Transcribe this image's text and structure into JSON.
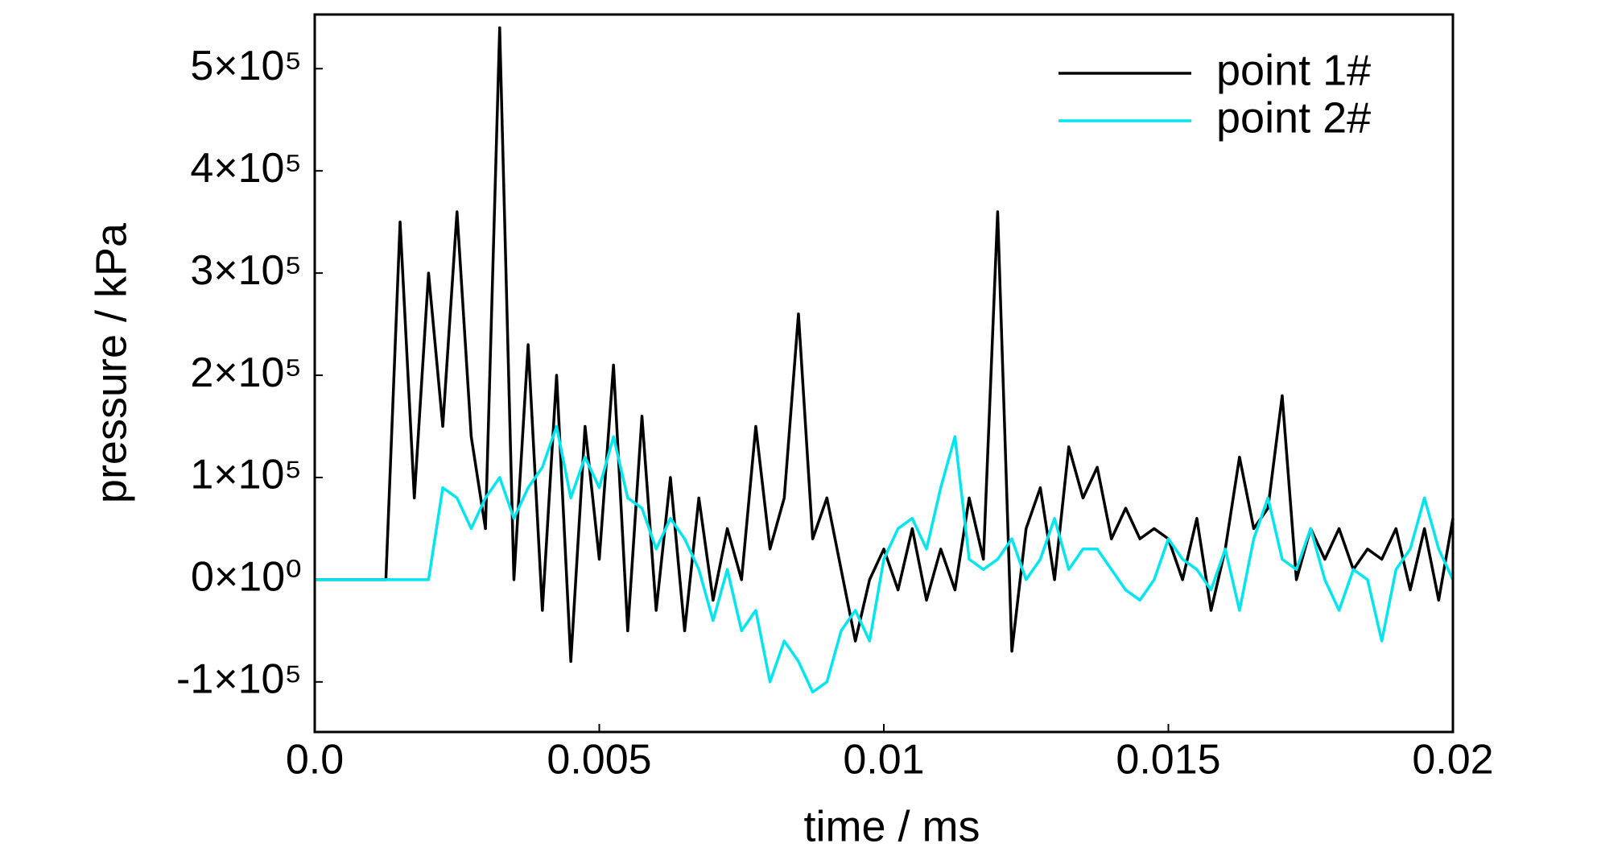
{
  "chart_data": {
    "type": "line",
    "xlabel": "time / ms",
    "ylabel": "pressure / kPa",
    "xlim": [
      0,
      0.02
    ],
    "ylim": [
      -149000,
      553000
    ],
    "xticks": [
      {
        "value": 0,
        "label": "0.0"
      },
      0.005,
      0.01,
      0.015,
      0.02
    ],
    "yticks": [
      {
        "value": -100000,
        "label": "-1×10⁵"
      },
      {
        "value": 0,
        "label": "0×10⁰"
      },
      {
        "value": 100000,
        "label": "1×10⁵"
      },
      {
        "value": 200000,
        "label": "2×10⁵"
      },
      {
        "value": 300000,
        "label": "3×10⁵"
      },
      {
        "value": 400000,
        "label": "4×10⁵"
      },
      {
        "value": 500000,
        "label": "5×10⁵"
      }
    ],
    "grid": false,
    "legend": "upper right",
    "x": [
      0,
      0.00025,
      0.0005,
      0.00075,
      0.001,
      0.00125,
      0.0015,
      0.00175,
      0.002,
      0.00225,
      0.0025,
      0.00275,
      0.003,
      0.00325,
      0.0035,
      0.00375,
      0.004,
      0.00425,
      0.0045,
      0.00475,
      0.005,
      0.00525,
      0.0055,
      0.00575,
      0.006,
      0.00625,
      0.0065,
      0.00675,
      0.007,
      0.00725,
      0.0075,
      0.00775,
      0.008,
      0.00825,
      0.0085,
      0.00875,
      0.009,
      0.00925,
      0.0095,
      0.00975,
      0.01,
      0.01025,
      0.0105,
      0.01075,
      0.011,
      0.01125,
      0.0115,
      0.01175,
      0.012,
      0.01225,
      0.0125,
      0.01275,
      0.013,
      0.01325,
      0.0135,
      0.01375,
      0.014,
      0.01425,
      0.0145,
      0.01475,
      0.015,
      0.01525,
      0.0155,
      0.01575,
      0.016,
      0.01625,
      0.0165,
      0.01675,
      0.017,
      0.01725,
      0.0175,
      0.01775,
      0.018,
      0.01825,
      0.0185,
      0.01875,
      0.019,
      0.01925,
      0.0195,
      0.01975,
      0.02
    ],
    "series": [
      {
        "name": "point 1#",
        "color": "#000000",
        "values": [
          0,
          0,
          0,
          0,
          0,
          0,
          350000,
          80000,
          300000,
          150000,
          360000,
          140000,
          50000,
          540000,
          0,
          230000,
          -30000,
          200000,
          -80000,
          150000,
          20000,
          210000,
          -50000,
          160000,
          -30000,
          100000,
          -50000,
          80000,
          -20000,
          50000,
          0,
          150000,
          30000,
          80000,
          260000,
          40000,
          80000,
          10000,
          -60000,
          0,
          30000,
          -10000,
          50000,
          -20000,
          30000,
          -10000,
          80000,
          20000,
          360000,
          -70000,
          50000,
          90000,
          0,
          130000,
          80000,
          110000,
          40000,
          70000,
          40000,
          50000,
          40000,
          0,
          60000,
          -30000,
          30000,
          120000,
          50000,
          70000,
          180000,
          0,
          50000,
          20000,
          50000,
          10000,
          30000,
          20000,
          50000,
          -10000,
          50000,
          -20000,
          60000
        ]
      },
      {
        "name": "point 2#",
        "color": "#00e5ee",
        "values": [
          0,
          0,
          0,
          0,
          0,
          0,
          0,
          0,
          0,
          90000,
          80000,
          50000,
          80000,
          100000,
          60000,
          90000,
          110000,
          150000,
          80000,
          120000,
          90000,
          140000,
          80000,
          70000,
          30000,
          60000,
          40000,
          10000,
          -40000,
          10000,
          -50000,
          -30000,
          -100000,
          -60000,
          -80000,
          -110000,
          -100000,
          -50000,
          -30000,
          -60000,
          20000,
          50000,
          60000,
          30000,
          90000,
          140000,
          20000,
          10000,
          20000,
          40000,
          0,
          20000,
          60000,
          10000,
          30000,
          30000,
          10000,
          -10000,
          -20000,
          0,
          40000,
          20000,
          10000,
          -10000,
          30000,
          -30000,
          40000,
          80000,
          20000,
          10000,
          50000,
          0,
          -30000,
          10000,
          0,
          -60000,
          10000,
          30000,
          80000,
          30000,
          0
        ]
      }
    ]
  }
}
